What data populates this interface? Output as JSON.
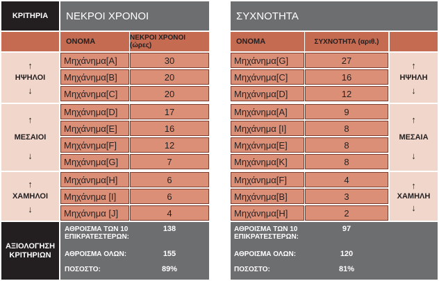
{
  "left": {
    "criteria_label": "ΚΡΙΤΗΡΙΑ",
    "title": "ΝΕΚΡΟΙ ΧΡΟΝΟΙ",
    "col_name": "ΟΝΟΜΑ",
    "col_value": "ΝΕΚΡΟΙ ΧΡΟΝΟΙ (ώρες)",
    "groups": [
      {
        "label": "ΗΨΗΛΟΙ",
        "up": "↑",
        "down": "↓"
      },
      {
        "label": "ΜΕΣΑΙΟΙ",
        "up": "↑",
        "down": "↓"
      },
      {
        "label": "ΧΑΜΗΛΟΙ",
        "up": "↑",
        "down": "↓"
      }
    ],
    "rows": [
      {
        "name": "Μηχάνημα[A]",
        "value": "30"
      },
      {
        "name": "Μηχάνημα[B]",
        "value": "20"
      },
      {
        "name": "Μηχάνημα[C]",
        "value": "20"
      },
      {
        "name": "Μηχάνημα[D]",
        "value": "17"
      },
      {
        "name": "Μηχάνημα[E]",
        "value": "16"
      },
      {
        "name": "Μηχάνημα[F]",
        "value": "12"
      },
      {
        "name": "Μηχάνημα[G]",
        "value": "7"
      },
      {
        "name": "Μηχάνημα[H]",
        "value": "6"
      },
      {
        "name": "Μηχάνημα [I]",
        "value": "6"
      },
      {
        "name": "Μηχάνημα [J]",
        "value": "4"
      }
    ],
    "eval_label": "ΑΞΙΟΛΟΓΗΣΗ ΚΡΙΤΗΡΙΩΝ",
    "sum10_label": "ΑΘΡΟΙΣΜΑ ΤΩΝ 10 ΕΠΙΚΡΑΤΕΣΤΕΡΩΝ:",
    "sum10_value": "138",
    "sumall_label": "ΑΘΡΟΙΣΜΑ ΟΛΩΝ:",
    "sumall_value": "155",
    "pct_label": "ΠΟΣΟΣΤΟ:",
    "pct_value": "89%"
  },
  "right": {
    "title": "ΣΥΧΝΟΤΗΤΑ",
    "col_name": "ΟΝΟΜΑ",
    "col_value": "ΣΥΧΝΟΤΗΤΑ (αριθ.)",
    "groups": [
      {
        "label": "ΗΨΗΛΗ",
        "up": "↑",
        "down": "↓"
      },
      {
        "label": "ΜΕΣΑΙΑ",
        "up": "↑",
        "down": "↓"
      },
      {
        "label": "ΧΑΜΗΛΗ",
        "up": "↑",
        "down": "↓"
      }
    ],
    "rows": [
      {
        "name": "Μηχάνημα[G]",
        "value": "27"
      },
      {
        "name": "Μηχάνημα[C]",
        "value": "16"
      },
      {
        "name": "Μηχάνημα[D]",
        "value": "12"
      },
      {
        "name": "Μηχάνημα[A]",
        "value": "9"
      },
      {
        "name": "Μηχάνημα [I]",
        "value": "8"
      },
      {
        "name": "Μηχάνημα[E]",
        "value": "8"
      },
      {
        "name": "Μηχάνημα[K]",
        "value": "8"
      },
      {
        "name": "Μηχάνημα[F]",
        "value": "4"
      },
      {
        "name": "Μηχάνημα[B]",
        "value": "3"
      },
      {
        "name": "Μηχάνημα[H]",
        "value": "2"
      }
    ],
    "sum10_label": "ΑΘΡΟΙΣΜΑ ΤΩΝ 10 ΕΠΙΚΡΑΤΕΣΤΕΡΩΝ:",
    "sum10_value": "97",
    "sumall_label": "ΑΘΡΟΙΣΜΑ ΟΛΩΝ:",
    "sumall_value": "120",
    "pct_label": "ΠΟΣΟΣΤΟ:",
    "pct_value": "81%"
  }
}
